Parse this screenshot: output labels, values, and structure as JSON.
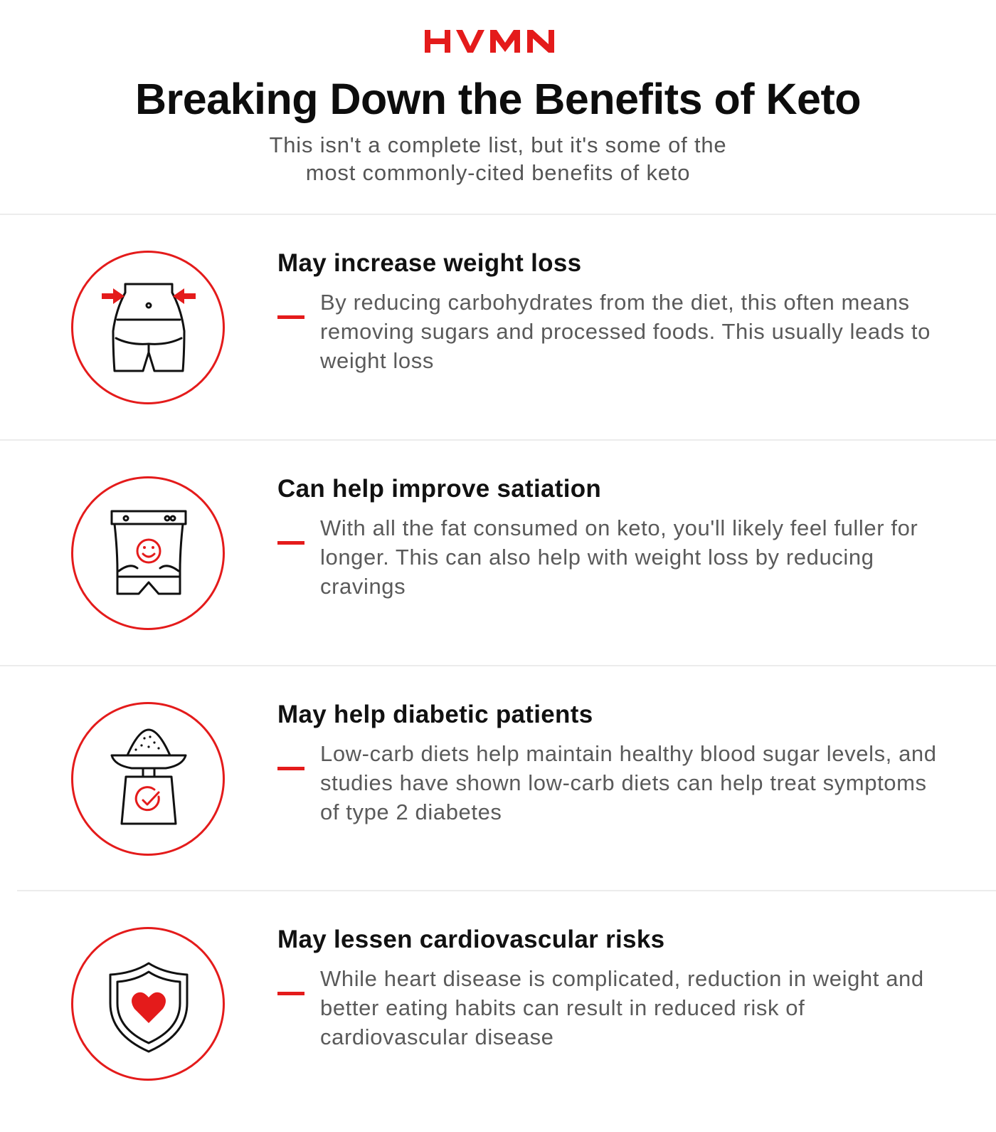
{
  "brand": {
    "logo_text": "HVMN",
    "accent_color": "#e41b1b"
  },
  "header": {
    "title": "Breaking Down the Benefits of Keto",
    "subtitle_line1": "This isn't a complete list, but it's some of the",
    "subtitle_line2": "most commonly-cited benefits of keto"
  },
  "benefits": [
    {
      "icon": "waist-measure-icon",
      "title": "May increase weight loss",
      "description": "By reducing carbohydrates from the diet, this often means removing sugars and processed foods. This usually leads to weight loss"
    },
    {
      "icon": "happy-stomach-icon",
      "title": "Can help improve satiation",
      "description": "With all the fat consumed on keto, you'll likely feel fuller for longer. This can also help with weight loss by reducing cravings"
    },
    {
      "icon": "scale-check-icon",
      "title": "May help diabetic patients",
      "description": "Low-carb diets help maintain healthy blood sugar levels, and studies have shown low-carb diets can help treat symptoms of type 2 diabetes"
    },
    {
      "icon": "heart-shield-icon",
      "title": "May lessen cardiovascular risks",
      "description": "While heart disease is complicated, reduction in weight and better eating habits can result in reduced risk of cardiovascular disease"
    }
  ]
}
